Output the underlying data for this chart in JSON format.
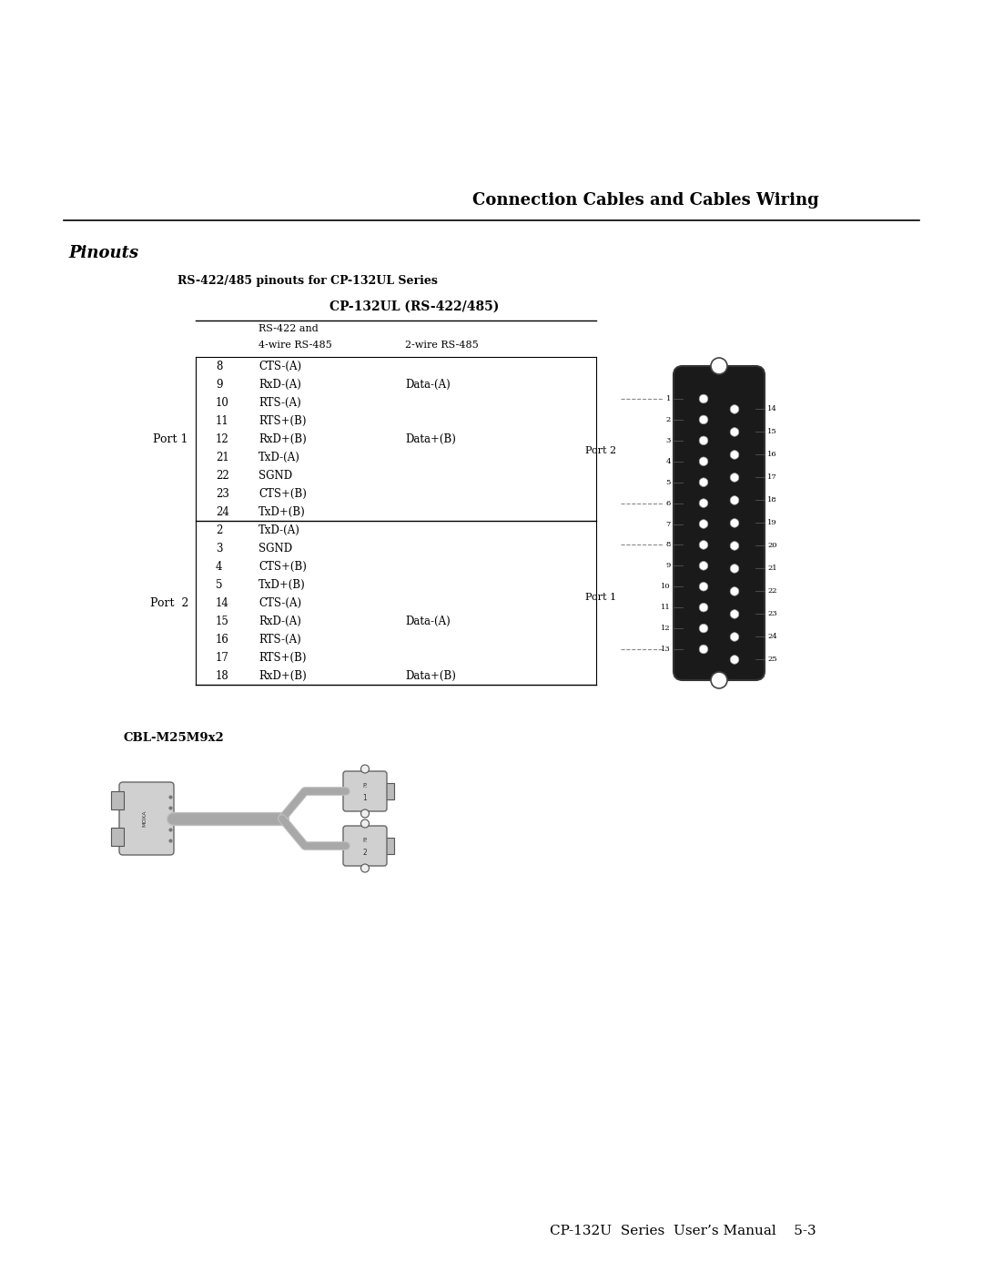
{
  "page_title": "Connection Cables and Cables Wiring",
  "section_title": "Pinouts",
  "subsection_title": "RS-422/485 pinouts for CP-132UL Series",
  "table_title": "CP-132UL (RS-422/485)",
  "col1_header_line1": "RS-422 and",
  "col1_header_line2": "4-wire RS-485",
  "col2_header": "2-wire RS-485",
  "port1_label": "Port 1",
  "port2_label": "Port  2",
  "port1_rows": [
    {
      "pin": "8",
      "signal": "CTS-(A)",
      "col2": ""
    },
    {
      "pin": "9",
      "signal": "RxD-(A)",
      "col2": "Data-(A)"
    },
    {
      "pin": "10",
      "signal": "RTS-(A)",
      "col2": ""
    },
    {
      "pin": "11",
      "signal": "RTS+(B)",
      "col2": ""
    },
    {
      "pin": "12",
      "signal": "RxD+(B)",
      "col2": "Data+(B)"
    },
    {
      "pin": "21",
      "signal": "TxD-(A)",
      "col2": ""
    },
    {
      "pin": "22",
      "signal": "SGND",
      "col2": ""
    },
    {
      "pin": "23",
      "signal": "CTS+(B)",
      "col2": ""
    },
    {
      "pin": "24",
      "signal": "TxD+(B)",
      "col2": ""
    }
  ],
  "port2_rows": [
    {
      "pin": "2",
      "signal": "TxD-(A)",
      "col2": ""
    },
    {
      "pin": "3",
      "signal": "SGND",
      "col2": ""
    },
    {
      "pin": "4",
      "signal": "CTS+(B)",
      "col2": ""
    },
    {
      "pin": "5",
      "signal": "TxD+(B)",
      "col2": ""
    },
    {
      "pin": "14",
      "signal": "CTS-(A)",
      "col2": ""
    },
    {
      "pin": "15",
      "signal": "RxD-(A)",
      "col2": "Data-(A)"
    },
    {
      "pin": "16",
      "signal": "RTS-(A)",
      "col2": ""
    },
    {
      "pin": "17",
      "signal": "RTS+(B)",
      "col2": ""
    },
    {
      "pin": "18",
      "signal": "RxD+(B)",
      "col2": "Data+(B)"
    }
  ],
  "cbl_label": "CBL-M25M9x2",
  "footer": "CP-132U  Series  User’s Manual    5-3",
  "bg_color": "#ffffff",
  "text_color": "#000000",
  "line_color": "#000000"
}
